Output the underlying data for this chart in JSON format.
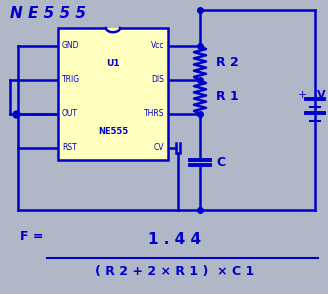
{
  "bg_color": "#b0b8c8",
  "line_color": "#0000cc",
  "ic_fill": "#ffffc0",
  "ic_border": "#0000cc",
  "title": "N E 5 5 5",
  "title_color": "#0000cc",
  "title_fontsize": 11,
  "label_color": "#0000cc",
  "ic_label": "U1",
  "ic_name": "NE555",
  "pins_left": [
    "GND",
    "TRIG",
    "OUT",
    "RST"
  ],
  "pins_right": [
    "Vcc",
    "DIS",
    "THRS",
    "CV"
  ],
  "lw": 1.8,
  "fig_w": 3.28,
  "fig_h": 2.94,
  "dpi": 100
}
